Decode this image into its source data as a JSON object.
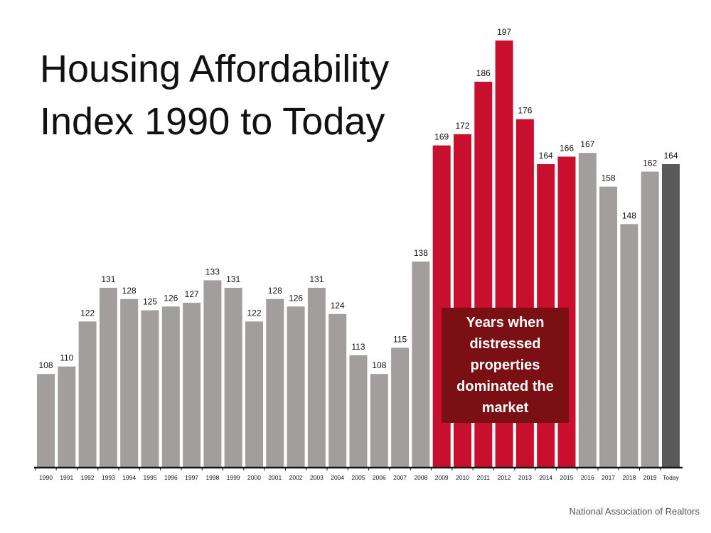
{
  "title": "Housing Affordability\nIndex 1990 to Today",
  "source": "National Association of Realtors",
  "callout_text": "Years when\ndistressed\nproperties\ndominated the\nmarket",
  "colors": {
    "normal": "#a39e9e",
    "distressed": "#c8102e",
    "today": "#595959",
    "callout_bg": "#7a0f14"
  },
  "chart_data": {
    "type": "bar",
    "title": "Housing Affordability Index 1990 to Today",
    "categories": [
      "1990",
      "1991",
      "1992",
      "1993",
      "1994",
      "1995",
      "1996",
      "1997",
      "1998",
      "1999",
      "2000",
      "2001",
      "2002",
      "2003",
      "2004",
      "2005",
      "2006",
      "2007",
      "2008",
      "2009",
      "2010",
      "2011",
      "2012",
      "2013",
      "2014",
      "2015",
      "2016",
      "2017",
      "2018",
      "2019",
      "Today"
    ],
    "values": [
      108,
      110,
      122,
      131,
      128,
      125,
      126,
      127,
      133,
      131,
      122,
      128,
      126,
      131,
      124,
      113,
      108,
      115,
      138,
      169,
      172,
      186,
      197,
      176,
      164,
      166,
      167,
      158,
      148,
      162,
      164
    ],
    "highlighted_categories": [
      "2009",
      "2010",
      "2011",
      "2012",
      "2013",
      "2014",
      "2015"
    ],
    "ylim": [
      83,
      200
    ],
    "grid": false,
    "legend": "none",
    "annotation": "Years when distressed properties dominated the market"
  }
}
